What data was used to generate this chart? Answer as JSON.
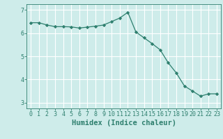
{
  "x": [
    0,
    1,
    2,
    3,
    4,
    5,
    6,
    7,
    8,
    9,
    10,
    11,
    12,
    13,
    14,
    15,
    16,
    17,
    18,
    19,
    20,
    21,
    22,
    23
  ],
  "y": [
    6.45,
    6.45,
    6.35,
    6.28,
    6.28,
    6.27,
    6.22,
    6.26,
    6.3,
    6.35,
    6.5,
    6.65,
    6.9,
    6.05,
    5.8,
    5.55,
    5.28,
    4.72,
    4.28,
    3.72,
    3.5,
    3.28,
    3.38,
    3.38
  ],
  "line_color": "#2e7f6e",
  "marker": "D",
  "marker_size": 2.2,
  "bg_color": "#ceecea",
  "grid_color": "#ffffff",
  "xlabel": "Humidex (Indice chaleur)",
  "xlabel_fontsize": 7.5,
  "ylim": [
    2.75,
    7.25
  ],
  "xlim": [
    -0.5,
    23.5
  ],
  "yticks": [
    3,
    4,
    5,
    6,
    7
  ],
  "xticks": [
    0,
    1,
    2,
    3,
    4,
    5,
    6,
    7,
    8,
    9,
    10,
    11,
    12,
    13,
    14,
    15,
    16,
    17,
    18,
    19,
    20,
    21,
    22,
    23
  ],
  "tick_fontsize": 6.0
}
